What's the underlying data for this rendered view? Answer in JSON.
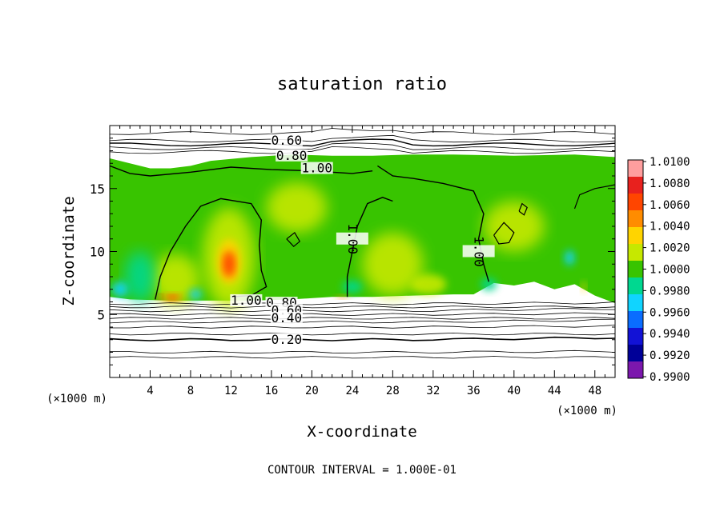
{
  "chart_data": {
    "type": "heatmap",
    "title": "saturation ratio",
    "xlabel": "X-coordinate",
    "ylabel": "Z-coordinate",
    "x_unit": "(×1000 m)",
    "y_unit": "(×1000 m)",
    "xlim": [
      0,
      50
    ],
    "ylim": [
      0,
      20
    ],
    "x_ticks": [
      4,
      8,
      12,
      16,
      20,
      24,
      28,
      32,
      36,
      40,
      44,
      48
    ],
    "y_ticks": [
      5,
      10,
      15
    ],
    "footer": "CONTOUR INTERVAL = 1.000E-01",
    "colorbar": {
      "labels": [
        "1.0100",
        "1.0080",
        "1.0060",
        "1.0040",
        "1.0020",
        "1.0000",
        "0.9980",
        "0.9960",
        "0.9940",
        "0.9920",
        "0.9900"
      ],
      "colors": [
        "#ff9e9e",
        "#e8211e",
        "#ff4500",
        "#ff8c00",
        "#ffd400",
        "#c6e800",
        "#38c400",
        "#00d890",
        "#10d4ff",
        "#0a6dff",
        "#1212d6",
        "#000098",
        "#7b17ad"
      ]
    },
    "contour_labels": [
      {
        "text": "0.60",
        "x": 17.5,
        "y": 18.8
      },
      {
        "text": "0.80",
        "x": 18.0,
        "y": 17.6
      },
      {
        "text": "1.00",
        "x": 20.5,
        "y": 16.6
      },
      {
        "text": "1.00",
        "x": 24.0,
        "y": 11.0
      },
      {
        "text": "1.00",
        "x": 36.5,
        "y": 10.0
      },
      {
        "text": "1.00",
        "x": 13.5,
        "y": 6.1
      },
      {
        "text": "0.80",
        "x": 17.0,
        "y": 5.9
      },
      {
        "text": "0.60",
        "x": 17.5,
        "y": 5.3
      },
      {
        "text": "0.40",
        "x": 17.5,
        "y": 4.7
      },
      {
        "text": "0.20",
        "x": 17.5,
        "y": 3.0
      }
    ]
  }
}
